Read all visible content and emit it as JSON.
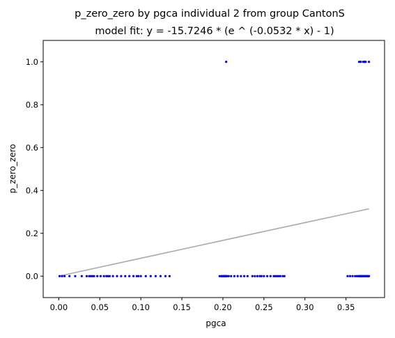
{
  "chart_data": {
    "type": "scatter",
    "title": "p_zero_zero by pgca individual 2 from group CantonS",
    "subtitle": "model fit: y = -15.7246 * (e ^ (-0.0532 * x) - 1)",
    "xlabel": "pgca",
    "ylabel": "p_zero_zero",
    "xlim": [
      -0.019,
      0.397
    ],
    "ylim": [
      -0.1,
      1.1
    ],
    "x_ticks": [
      0.0,
      0.05,
      0.1,
      0.15,
      0.2,
      0.25,
      0.3,
      0.35
    ],
    "x_tick_labels": [
      "0.00",
      "0.05",
      "0.10",
      "0.15",
      "0.20",
      "0.25",
      "0.30",
      "0.35"
    ],
    "y_ticks": [
      0.0,
      0.2,
      0.4,
      0.6,
      0.8,
      1.0
    ],
    "y_tick_labels": [
      "0.0",
      "0.2",
      "0.4",
      "0.6",
      "0.8",
      "1.0"
    ],
    "grid": false,
    "colors": {
      "points": "#0000ee",
      "fit_line": "#aaaaaa",
      "axes": "#000000"
    },
    "series": [
      {
        "kind": "scatter",
        "x": [
          0.001,
          0.004,
          0.007,
          0.013,
          0.02,
          0.028,
          0.034,
          0.037,
          0.039,
          0.041,
          0.043,
          0.047,
          0.051,
          0.055,
          0.058,
          0.06,
          0.062,
          0.066,
          0.071,
          0.076,
          0.081,
          0.086,
          0.091,
          0.095,
          0.097,
          0.1,
          0.106,
          0.112,
          0.118,
          0.124,
          0.13,
          0.135,
          0.196,
          0.198,
          0.199,
          0.2,
          0.201,
          0.202,
          0.203,
          0.204,
          0.205,
          0.207,
          0.21,
          0.214,
          0.218,
          0.222,
          0.226,
          0.23,
          0.236,
          0.239,
          0.242,
          0.245,
          0.247,
          0.25,
          0.254,
          0.258,
          0.262,
          0.264,
          0.266,
          0.268,
          0.27,
          0.273,
          0.275,
          0.352,
          0.355,
          0.358,
          0.361,
          0.363,
          0.365,
          0.366,
          0.367,
          0.368,
          0.369,
          0.37,
          0.371,
          0.372,
          0.373,
          0.374,
          0.375,
          0.376,
          0.377,
          0.378,
          0.204,
          0.366,
          0.368,
          0.371,
          0.372,
          0.373,
          0.374,
          0.378
        ],
        "y": [
          0,
          0,
          0,
          0,
          0,
          0,
          0,
          0,
          0,
          0,
          0,
          0,
          0,
          0,
          0,
          0,
          0,
          0,
          0,
          0,
          0,
          0,
          0,
          0,
          0,
          0,
          0,
          0,
          0,
          0,
          0,
          0,
          0,
          0,
          0,
          0,
          0,
          0,
          0,
          0,
          0,
          0,
          0,
          0,
          0,
          0,
          0,
          0,
          0,
          0,
          0,
          0,
          0,
          0,
          0,
          0,
          0,
          0,
          0,
          0,
          0,
          0,
          0,
          0,
          0,
          0,
          0,
          0,
          0,
          0,
          0,
          0,
          0,
          0,
          0,
          0,
          0,
          0,
          0,
          0,
          0,
          0,
          1,
          1,
          1,
          1,
          1,
          1,
          1,
          1
        ]
      },
      {
        "kind": "line",
        "x": [
          0.0,
          0.05,
          0.1,
          0.15,
          0.2,
          0.25,
          0.3,
          0.35,
          0.378
        ],
        "y": [
          0.0,
          0.0418,
          0.0836,
          0.1253,
          0.1669,
          0.2084,
          0.2498,
          0.2911,
          0.3142
        ]
      }
    ]
  }
}
